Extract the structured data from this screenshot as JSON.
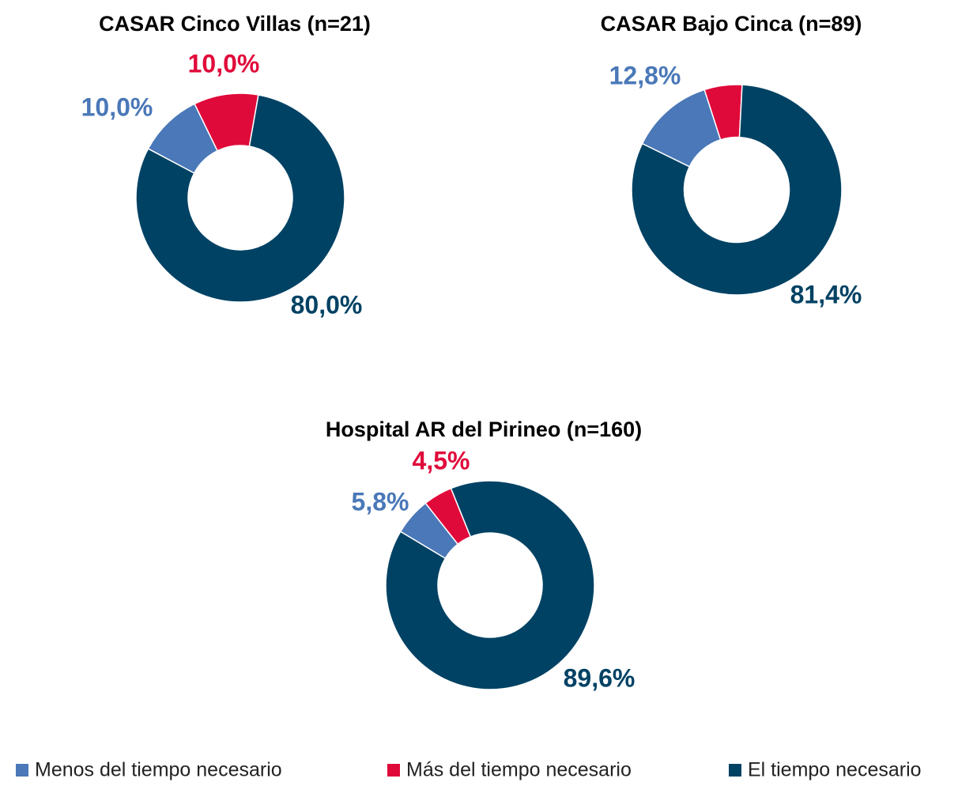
{
  "chart_data": [
    {
      "type": "donut",
      "title": "CASAR Cinco Villas (n=21)",
      "values": [
        10.0,
        10.0,
        80.0
      ],
      "value_labels": [
        "10,0%",
        "10,0%",
        "80,0%"
      ]
    },
    {
      "type": "donut",
      "title": "CASAR Bajo Cinca (n=89)",
      "values": [
        12.8,
        5.8,
        81.4
      ],
      "value_labels": [
        "12,8%",
        null,
        "81,4%"
      ]
    },
    {
      "type": "donut",
      "title": "Hospital AR del Pirineo (n=160)",
      "values": [
        5.8,
        4.5,
        89.6
      ],
      "value_labels": [
        "5,8%",
        "4,5%",
        "89,6%"
      ]
    }
  ],
  "legend": {
    "items": [
      {
        "name": "Menos del tiempo necesario",
        "color": "#4a78b8"
      },
      {
        "name": "Más del tiempo necesario",
        "color": "#e00a3a"
      },
      {
        "name": "El tiempo necesario",
        "color": "#004264"
      }
    ]
  }
}
